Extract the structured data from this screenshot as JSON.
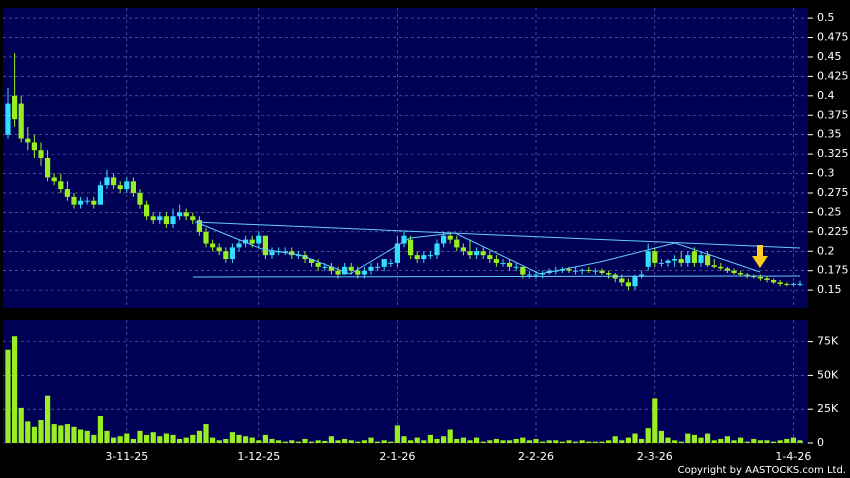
{
  "chart_data": [
    {
      "type": "candlestick",
      "open": [
        0.35,
        0.4,
        0.39,
        0.345,
        0.34,
        0.33,
        0.32,
        0.295,
        0.29,
        0.28,
        0.27,
        0.26,
        0.265,
        0.265,
        0.26,
        0.285,
        0.295,
        0.285,
        0.28,
        0.29,
        0.275,
        0.26,
        0.245,
        0.24,
        0.245,
        0.235,
        0.245,
        0.25,
        0.245,
        0.24,
        0.225,
        0.21,
        0.205,
        0.2,
        0.19,
        0.205,
        0.21,
        0.215,
        0.21,
        0.22,
        0.195,
        0.2,
        0.2,
        0.2,
        0.195,
        0.195,
        0.19,
        0.185,
        0.18,
        0.18,
        0.175,
        0.17,
        0.18,
        0.175,
        0.17,
        0.175,
        0.18,
        0.18,
        0.185,
        0.185,
        0.21,
        0.215,
        0.195,
        0.19,
        0.195,
        0.195,
        0.21,
        0.22,
        0.215,
        0.205,
        0.2,
        0.195,
        0.2,
        0.195,
        0.19,
        0.185,
        0.185,
        0.18,
        0.18,
        0.17,
        0.17,
        0.17,
        0.172,
        0.175,
        0.175,
        0.177,
        0.175,
        0.175,
        0.176,
        0.175,
        0.175,
        0.172,
        0.17,
        0.165,
        0.16,
        0.155,
        0.168,
        0.18,
        0.2,
        0.185,
        0.185,
        0.188,
        0.19,
        0.185,
        0.2,
        0.185,
        0.195,
        0.182,
        0.18,
        0.178,
        0.175,
        0.172,
        0.17,
        0.168,
        0.167,
        0.165,
        0.163,
        0.16,
        0.158,
        0.157,
        0.158
      ],
      "high": [
        0.41,
        0.455,
        0.4,
        0.36,
        0.35,
        0.34,
        0.33,
        0.3,
        0.3,
        0.29,
        0.275,
        0.27,
        0.27,
        0.27,
        0.29,
        0.305,
        0.3,
        0.29,
        0.295,
        0.295,
        0.28,
        0.265,
        0.25,
        0.25,
        0.25,
        0.255,
        0.26,
        0.255,
        0.25,
        0.245,
        0.23,
        0.215,
        0.21,
        0.205,
        0.21,
        0.215,
        0.22,
        0.22,
        0.225,
        0.22,
        0.205,
        0.205,
        0.205,
        0.205,
        0.2,
        0.2,
        0.19,
        0.19,
        0.185,
        0.185,
        0.18,
        0.185,
        0.185,
        0.18,
        0.18,
        0.185,
        0.185,
        0.19,
        0.19,
        0.22,
        0.225,
        0.22,
        0.2,
        0.2,
        0.2,
        0.215,
        0.225,
        0.225,
        0.22,
        0.21,
        0.215,
        0.205,
        0.205,
        0.2,
        0.195,
        0.19,
        0.19,
        0.185,
        0.18,
        0.175,
        0.175,
        0.175,
        0.178,
        0.18,
        0.18,
        0.18,
        0.18,
        0.178,
        0.18,
        0.178,
        0.178,
        0.175,
        0.172,
        0.17,
        0.165,
        0.17,
        0.175,
        0.21,
        0.205,
        0.19,
        0.19,
        0.195,
        0.2,
        0.2,
        0.205,
        0.2,
        0.2,
        0.19,
        0.185,
        0.18,
        0.178,
        0.175,
        0.172,
        0.17,
        0.17,
        0.168,
        0.165,
        0.163,
        0.16,
        0.16,
        0.162
      ],
      "low": [
        0.345,
        0.36,
        0.34,
        0.33,
        0.32,
        0.31,
        0.29,
        0.285,
        0.275,
        0.265,
        0.255,
        0.255,
        0.26,
        0.255,
        0.26,
        0.28,
        0.28,
        0.275,
        0.275,
        0.27,
        0.255,
        0.24,
        0.235,
        0.235,
        0.23,
        0.23,
        0.24,
        0.24,
        0.235,
        0.22,
        0.205,
        0.2,
        0.195,
        0.185,
        0.185,
        0.2,
        0.205,
        0.205,
        0.205,
        0.19,
        0.19,
        0.195,
        0.195,
        0.19,
        0.19,
        0.185,
        0.18,
        0.175,
        0.175,
        0.17,
        0.165,
        0.17,
        0.17,
        0.165,
        0.165,
        0.17,
        0.175,
        0.175,
        0.18,
        0.18,
        0.205,
        0.19,
        0.185,
        0.185,
        0.19,
        0.19,
        0.205,
        0.21,
        0.2,
        0.195,
        0.19,
        0.19,
        0.19,
        0.185,
        0.18,
        0.18,
        0.175,
        0.175,
        0.165,
        0.165,
        0.165,
        0.165,
        0.17,
        0.17,
        0.172,
        0.172,
        0.17,
        0.17,
        0.172,
        0.17,
        0.17,
        0.165,
        0.16,
        0.155,
        0.15,
        0.15,
        0.165,
        0.175,
        0.18,
        0.18,
        0.18,
        0.18,
        0.18,
        0.18,
        0.18,
        0.18,
        0.18,
        0.178,
        0.175,
        0.172,
        0.17,
        0.168,
        0.165,
        0.165,
        0.162,
        0.16,
        0.158,
        0.155,
        0.155,
        0.155,
        0.155
      ],
      "close": [
        0.39,
        0.37,
        0.345,
        0.34,
        0.33,
        0.32,
        0.295,
        0.29,
        0.28,
        0.27,
        0.26,
        0.265,
        0.265,
        0.26,
        0.285,
        0.295,
        0.285,
        0.28,
        0.29,
        0.275,
        0.26,
        0.245,
        0.24,
        0.245,
        0.235,
        0.245,
        0.25,
        0.245,
        0.24,
        0.225,
        0.21,
        0.205,
        0.2,
        0.19,
        0.205,
        0.21,
        0.215,
        0.21,
        0.22,
        0.195,
        0.2,
        0.2,
        0.2,
        0.195,
        0.195,
        0.19,
        0.185,
        0.18,
        0.18,
        0.175,
        0.17,
        0.18,
        0.175,
        0.17,
        0.175,
        0.18,
        0.18,
        0.19,
        0.185,
        0.21,
        0.22,
        0.195,
        0.19,
        0.195,
        0.195,
        0.21,
        0.22,
        0.215,
        0.205,
        0.2,
        0.195,
        0.2,
        0.195,
        0.19,
        0.185,
        0.185,
        0.18,
        0.18,
        0.17,
        0.17,
        0.17,
        0.172,
        0.175,
        0.175,
        0.177,
        0.175,
        0.175,
        0.176,
        0.175,
        0.175,
        0.172,
        0.17,
        0.165,
        0.16,
        0.155,
        0.168,
        0.17,
        0.2,
        0.185,
        0.185,
        0.188,
        0.19,
        0.185,
        0.195,
        0.185,
        0.195,
        0.182,
        0.18,
        0.178,
        0.175,
        0.172,
        0.17,
        0.168,
        0.167,
        0.165,
        0.163,
        0.16,
        0.158,
        0.157,
        0.158,
        0.158
      ],
      "up_color": "#33ddff",
      "down_color": "#99ee22",
      "ylim": [
        0.127,
        0.513
      ],
      "yticks": [
        0.15,
        0.175,
        0.2,
        0.225,
        0.25,
        0.275,
        0.3,
        0.325,
        0.35,
        0.375,
        0.4,
        0.425,
        0.45,
        0.475,
        0.5
      ],
      "grid": true
    },
    {
      "type": "bar",
      "categories": [
        null,
        null,
        null,
        null,
        null,
        null,
        null,
        null,
        null,
        null,
        null,
        null,
        null,
        null,
        null,
        null,
        null,
        null,
        "3-11-25",
        null,
        null,
        null,
        null,
        null,
        null,
        null,
        null,
        null,
        null,
        null,
        null,
        null,
        null,
        null,
        null,
        null,
        null,
        null,
        "1-12-25",
        null,
        null,
        null,
        null,
        null,
        null,
        null,
        null,
        null,
        null,
        null,
        null,
        null,
        null,
        null,
        null,
        null,
        null,
        null,
        null,
        "2-1-26",
        null,
        null,
        null,
        null,
        null,
        null,
        null,
        null,
        null,
        null,
        null,
        null,
        null,
        null,
        null,
        null,
        null,
        null,
        null,
        null,
        "2-2-26",
        null,
        null,
        null,
        null,
        null,
        null,
        null,
        null,
        null,
        null,
        null,
        null,
        null,
        null,
        null,
        null,
        null,
        "2-3-26",
        null,
        null,
        null,
        null,
        null,
        null,
        null,
        null,
        null,
        null,
        null,
        null,
        null,
        null,
        null,
        null,
        null,
        null,
        null,
        null,
        "1-4-26",
        null
      ],
      "values": [
        69000,
        79000,
        26000,
        16000,
        12000,
        17000,
        35000,
        14000,
        13000,
        14000,
        12000,
        10000,
        9000,
        6000,
        20000,
        9000,
        4000,
        5000,
        7000,
        3000,
        9000,
        6000,
        8000,
        5000,
        7000,
        6000,
        3000,
        4000,
        6000,
        9000,
        14000,
        4000,
        2000,
        3000,
        8000,
        6000,
        5000,
        4000,
        2000,
        6000,
        3000,
        2000,
        1000,
        2000,
        1000,
        3000,
        1000,
        2000,
        1500,
        5000,
        2000,
        3000,
        2000,
        1000,
        2000,
        4000,
        1000,
        2000,
        1000,
        13000,
        5000,
        2000,
        4000,
        2000,
        6000,
        3000,
        5000,
        10000,
        3000,
        4000,
        2000,
        4000,
        1000,
        2000,
        3000,
        2000,
        2000,
        3000,
        4000,
        2000,
        3000,
        1000,
        2000,
        2000,
        1000,
        2000,
        1000,
        2000,
        1000,
        1000,
        1000,
        2000,
        5000,
        2000,
        4000,
        7000,
        3000,
        11000,
        33000,
        9000,
        4000,
        2000,
        1000,
        7000,
        6000,
        4000,
        7000,
        2000,
        3000,
        5000,
        2000,
        4000,
        1000,
        3000,
        2000,
        2000,
        1000,
        2000,
        3000,
        4000,
        2000
      ],
      "color": "#99ee22",
      "ylim": [
        0,
        91000
      ],
      "yticks": [
        0,
        {
          "value": 25000,
          "label": "25K"
        },
        {
          "value": 50000,
          "label": "50K"
        },
        {
          "value": 75000,
          "label": "75K"
        }
      ],
      "grid": true
    }
  ],
  "copyright": "Copyright by AASTOCKS.com Ltd."
}
